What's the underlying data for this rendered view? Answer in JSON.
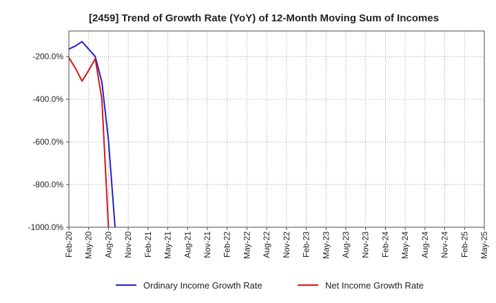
{
  "chart_data": {
    "type": "line",
    "title": "[2459]  Trend of Growth Rate (YoY) of 12-Month Moving Sum of Incomes",
    "xlabel": "",
    "ylabel": "",
    "ylim": [
      -1000,
      -80
    ],
    "y_ticks": [
      "-200.0%",
      "-400.0%",
      "-600.0%",
      "-800.0%",
      "-1000.0%"
    ],
    "y_tick_values": [
      -200,
      -400,
      -600,
      -800,
      -1000
    ],
    "x": [
      "Feb-20",
      "Mar-20",
      "Apr-20",
      "May-20",
      "Jun-20",
      "Jul-20",
      "Aug-20",
      "Sep-20",
      "Oct-20",
      "Nov-20"
    ],
    "x_ticks": [
      "Feb-20",
      "May-20",
      "Aug-20",
      "Nov-20",
      "Feb-21",
      "May-21",
      "Aug-21",
      "Nov-21",
      "Feb-22",
      "May-22",
      "Aug-22",
      "Nov-22",
      "Feb-23",
      "May-23",
      "Aug-23",
      "Nov-23",
      "Feb-24",
      "May-24",
      "Aug-24",
      "Nov-24",
      "Feb-25",
      "May-25"
    ],
    "grid": true,
    "legend_position": "bottom",
    "series": [
      {
        "name": "Ordinary Income Growth Rate",
        "color": "#1f1fcc",
        "values": [
          -165,
          -150,
          -130,
          -165,
          -200,
          -320,
          -590,
          -1000,
          null,
          null
        ]
      },
      {
        "name": "Net Income Growth Rate",
        "color": "#dd1111",
        "values": [
          -205,
          -255,
          -315,
          -265,
          -210,
          -400,
          -1000,
          null,
          null,
          null
        ]
      }
    ]
  }
}
